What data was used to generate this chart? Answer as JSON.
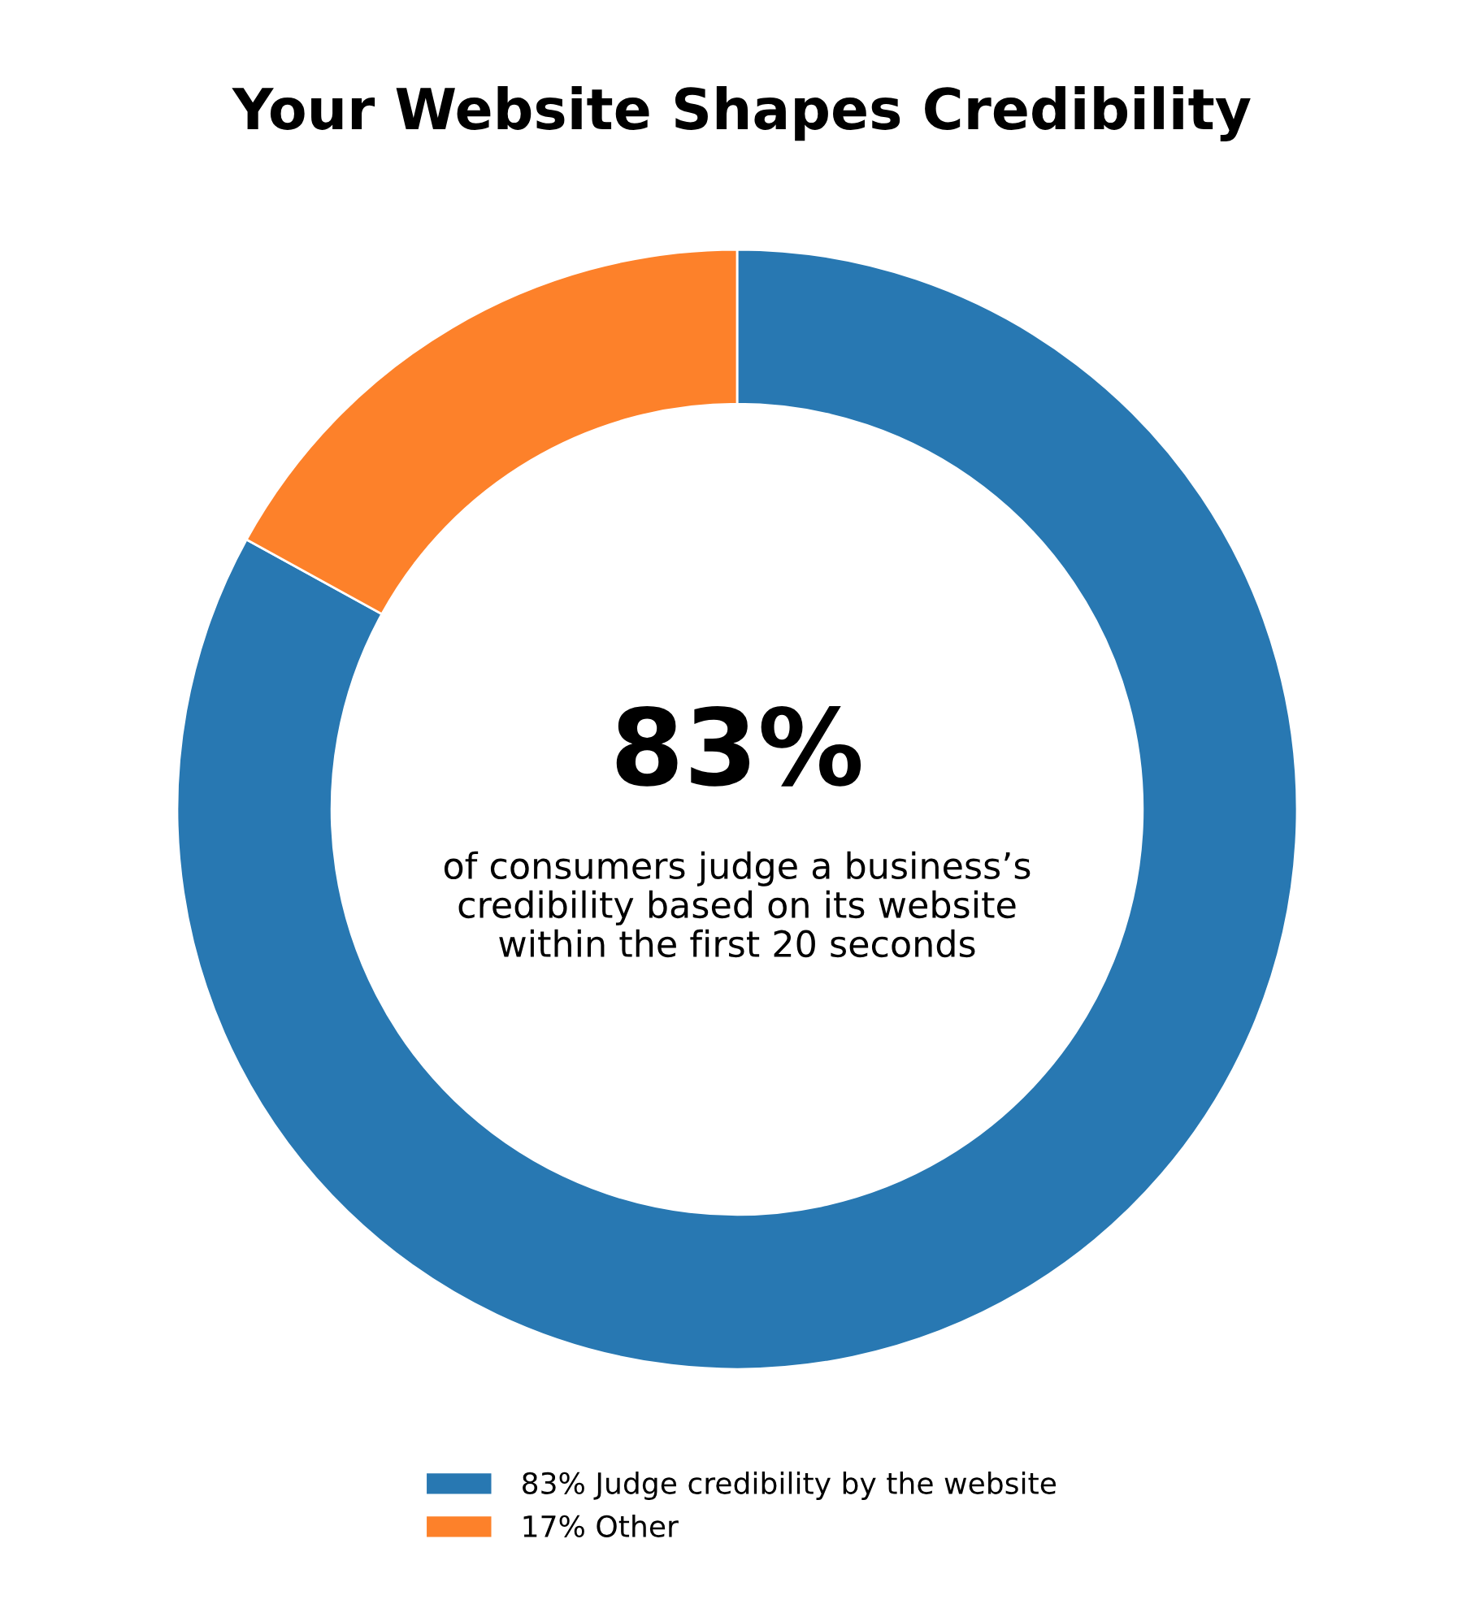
{
  "chart_data": {
    "type": "donut",
    "title": "Your Website Shapes Credibility",
    "categories": [
      "83% Judge credibility by the website",
      "17% Other"
    ],
    "values": [
      83,
      17
    ],
    "colors": [
      "#2878b2",
      "#fd812a"
    ],
    "annotations": [
      "83%",
      "of consumers judge a business’s\ncredibility based on its website\nwithin the first 20 seconds"
    ],
    "legend": "bottom"
  }
}
